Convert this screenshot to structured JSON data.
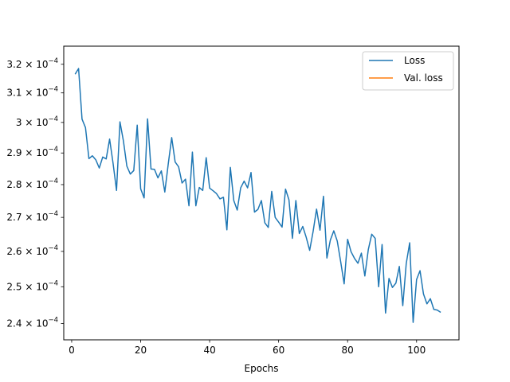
{
  "chart_data": {
    "type": "line",
    "title": "",
    "xlabel": "Epochs",
    "ylabel": "",
    "yscale": "log",
    "xlim": [
      -2.3,
      112.3
    ],
    "ylim": [
      0.0002357,
      0.0003265
    ],
    "grid": false,
    "legend_position": "top-right",
    "x_ticks": [
      {
        "value": 0,
        "label": "0"
      },
      {
        "value": 20,
        "label": "20"
      },
      {
        "value": 40,
        "label": "40"
      },
      {
        "value": 60,
        "label": "60"
      },
      {
        "value": 80,
        "label": "80"
      },
      {
        "value": 100,
        "label": "100"
      }
    ],
    "y_ticks": [
      {
        "value": 0.00024,
        "mantissa": "2.4",
        "base": "10",
        "exp": "−4"
      },
      {
        "value": 0.00025,
        "mantissa": "2.5",
        "base": "10",
        "exp": "−4"
      },
      {
        "value": 0.00026,
        "mantissa": "2.6",
        "base": "10",
        "exp": "−4"
      },
      {
        "value": 0.00027,
        "mantissa": "2.7",
        "base": "10",
        "exp": "−4"
      },
      {
        "value": 0.00028,
        "mantissa": "2.8",
        "base": "10",
        "exp": "−4"
      },
      {
        "value": 0.00029,
        "mantissa": "2.9",
        "base": "10",
        "exp": "−4"
      },
      {
        "value": 0.0003,
        "mantissa": "3",
        "base": "10",
        "exp": "−4"
      },
      {
        "value": 0.00031,
        "mantissa": "3.1",
        "base": "10",
        "exp": "−4"
      },
      {
        "value": 0.00032,
        "mantissa": "3.2",
        "base": "10",
        "exp": "−4"
      }
    ],
    "series": [
      {
        "name": "Loss",
        "color": "#1f77b4",
        "x": [
          1,
          2,
          3,
          4,
          5,
          6,
          7,
          8,
          9,
          10,
          11,
          12,
          13,
          14,
          15,
          16,
          17,
          18,
          19,
          20,
          21,
          22,
          23,
          24,
          25,
          26,
          27,
          28,
          29,
          30,
          31,
          32,
          33,
          34,
          35,
          36,
          37,
          38,
          39,
          40,
          41,
          42,
          43,
          44,
          45,
          46,
          47,
          48,
          49,
          50,
          51,
          52,
          53,
          54,
          55,
          56,
          57,
          58,
          59,
          60,
          61,
          62,
          63,
          64,
          65,
          66,
          67,
          68,
          69,
          70,
          71,
          72,
          73,
          74,
          75,
          76,
          77,
          78,
          79,
          80,
          81,
          82,
          83,
          84,
          85,
          86,
          87,
          88,
          89,
          90,
          91,
          92,
          93,
          94,
          95,
          96,
          97,
          98,
          99,
          100,
          101,
          102,
          103,
          104,
          105,
          106,
          107
        ],
        "y": [
          0.0003165,
          0.0003185,
          0.0003011,
          0.0002983,
          0.0002882,
          0.0002891,
          0.0002878,
          0.0002852,
          0.0002887,
          0.0002881,
          0.0002945,
          0.0002867,
          0.0002782,
          0.0003002,
          0.0002939,
          0.0002858,
          0.0002833,
          0.0002844,
          0.0002991,
          0.0002787,
          0.0002759,
          0.0003012,
          0.0002849,
          0.0002848,
          0.0002821,
          0.0002843,
          0.0002777,
          0.0002865,
          0.000295,
          0.0002871,
          0.0002856,
          0.0002805,
          0.0002817,
          0.0002735,
          0.0002903,
          0.0002735,
          0.0002791,
          0.0002782,
          0.0002885,
          0.0002789,
          0.0002781,
          0.0002772,
          0.0002756,
          0.0002761,
          0.0002663,
          0.0002854,
          0.0002751,
          0.0002722,
          0.000279,
          0.0002811,
          0.000279,
          0.0002838,
          0.0002716,
          0.0002724,
          0.0002751,
          0.0002684,
          0.000267,
          0.0002779,
          0.00027,
          0.0002686,
          0.0002671,
          0.0002786,
          0.0002753,
          0.0002638,
          0.0002751,
          0.0002652,
          0.0002673,
          0.0002641,
          0.0002603,
          0.0002658,
          0.0002725,
          0.0002662,
          0.0002764,
          0.0002581,
          0.0002633,
          0.000266,
          0.000263,
          0.000257,
          0.0002508,
          0.0002635,
          0.0002599,
          0.000258,
          0.0002566,
          0.0002595,
          0.000253,
          0.0002605,
          0.000265,
          0.0002638,
          0.00025,
          0.000262,
          0.0002428,
          0.0002523,
          0.0002498,
          0.000251,
          0.0002557,
          0.0002448,
          0.0002565,
          0.0002625,
          0.0002403,
          0.000252,
          0.0002545,
          0.000248,
          0.0002453,
          0.0002467,
          0.0002438,
          0.0002436,
          0.000243
        ]
      },
      {
        "name": "Val. loss",
        "color": "#ff7f0e",
        "x": [],
        "y": []
      }
    ]
  }
}
